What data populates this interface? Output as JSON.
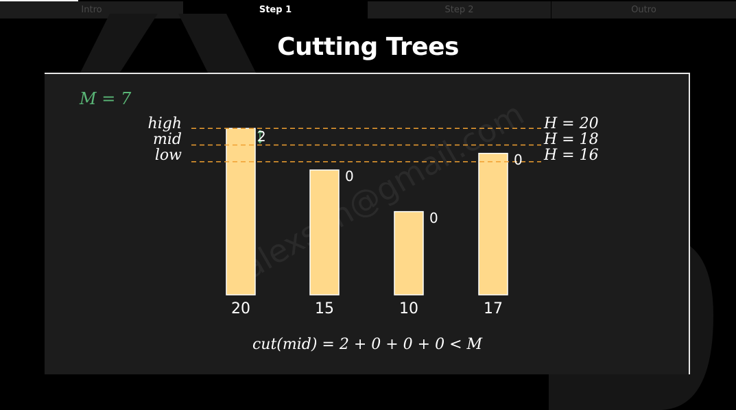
{
  "tabs": [
    {
      "label": "Intro",
      "active": false
    },
    {
      "label": "Step 1",
      "active": true
    },
    {
      "label": "Step 2",
      "active": false
    },
    {
      "label": "Outro",
      "active": false
    }
  ],
  "title": "Cutting Trees",
  "m_label": "M = 7",
  "levels": [
    {
      "name": "high",
      "h_label": "H = 20",
      "value": 20
    },
    {
      "name": "mid",
      "h_label": "H = 18",
      "value": 18
    },
    {
      "name": "low",
      "h_label": "H = 16",
      "value": 16
    }
  ],
  "formula": "cut(mid) = 2 + 0 + 0 + 0 < M",
  "watermark": "alexsun@gmail.com",
  "colors": {
    "bar": "#ffd98a",
    "dashed": "#f0a030",
    "accent": "#5ab777"
  },
  "chart_data": {
    "type": "bar",
    "categories": [
      "20",
      "15",
      "10",
      "17"
    ],
    "values": [
      20,
      15,
      10,
      17
    ],
    "cut_labels": [
      "2",
      "0",
      "0",
      "0"
    ],
    "ylim": [
      0,
      20.6
    ],
    "reference_lines": [
      20,
      18,
      16
    ]
  }
}
